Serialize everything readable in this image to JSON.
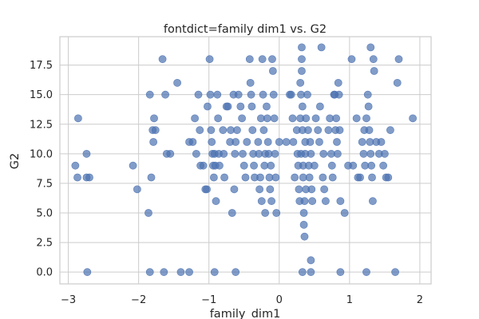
{
  "chart_data": {
    "type": "scatter",
    "title": "fontdict=family dim1 vs. G2",
    "xlabel": "family_dim1",
    "ylabel": "G2",
    "xlim": [
      -3.12,
      2.16
    ],
    "ylim": [
      -1.0,
      19.9
    ],
    "xticks": [
      -3,
      -2,
      -1,
      0,
      1,
      2
    ],
    "yticks": [
      0.0,
      2.5,
      5.0,
      7.5,
      10.0,
      12.5,
      15.0,
      17.5
    ],
    "xtick_labels": [
      "−3",
      "−2",
      "−1",
      "0",
      "1",
      "2"
    ],
    "ytick_labels": [
      "0.0",
      "2.5",
      "5.0",
      "7.5",
      "10.0",
      "12.5",
      "15.0",
      "17.5"
    ],
    "grid": true,
    "color": "#4c72b0",
    "points": [
      [
        -2.86,
        13
      ],
      [
        -2.9,
        9
      ],
      [
        -2.87,
        8
      ],
      [
        -2.74,
        10
      ],
      [
        -2.74,
        8
      ],
      [
        -2.7,
        8
      ],
      [
        -2.73,
        0
      ],
      [
        -2.08,
        9
      ],
      [
        -2.02,
        7
      ],
      [
        -1.86,
        5
      ],
      [
        -1.84,
        15
      ],
      [
        -1.82,
        8
      ],
      [
        -1.8,
        12
      ],
      [
        -1.79,
        11
      ],
      [
        -1.78,
        13
      ],
      [
        -1.76,
        12
      ],
      [
        -1.84,
        0
      ],
      [
        -1.66,
        18
      ],
      [
        -1.64,
        0
      ],
      [
        -1.62,
        15
      ],
      [
        -1.6,
        10
      ],
      [
        -1.55,
        10
      ],
      [
        -1.45,
        16
      ],
      [
        -1.4,
        0
      ],
      [
        -1.28,
        11
      ],
      [
        -1.23,
        11
      ],
      [
        -1.28,
        0
      ],
      [
        -1.2,
        13
      ],
      [
        -1.18,
        10
      ],
      [
        -1.15,
        15
      ],
      [
        -1.13,
        12
      ],
      [
        -1.12,
        9
      ],
      [
        -1.08,
        9
      ],
      [
        -1.05,
        7
      ],
      [
        -1.03,
        7
      ],
      [
        -1.02,
        14
      ],
      [
        -0.99,
        18
      ],
      [
        -0.98,
        15
      ],
      [
        -0.97,
        12
      ],
      [
        -0.96,
        11
      ],
      [
        -0.95,
        10
      ],
      [
        -0.94,
        9
      ],
      [
        -0.92,
        10
      ],
      [
        -0.91,
        9
      ],
      [
        -0.9,
        6
      ],
      [
        -0.93,
        8
      ],
      [
        -0.88,
        15
      ],
      [
        -0.87,
        13
      ],
      [
        -0.86,
        10
      ],
      [
        -0.85,
        9
      ],
      [
        -0.92,
        0
      ],
      [
        -0.8,
        12
      ],
      [
        -0.79,
        10
      ],
      [
        -0.78,
        8
      ],
      [
        -0.75,
        14
      ],
      [
        -0.73,
        14
      ],
      [
        -0.7,
        11
      ],
      [
        -0.69,
        12
      ],
      [
        -0.67,
        5
      ],
      [
        -0.65,
        15
      ],
      [
        -0.64,
        7
      ],
      [
        -0.63,
        10
      ],
      [
        -0.62,
        11
      ],
      [
        -0.6,
        12
      ],
      [
        -0.62,
        0
      ],
      [
        -0.58,
        15
      ],
      [
        -0.55,
        14
      ],
      [
        -0.53,
        13
      ],
      [
        -0.52,
        10
      ],
      [
        -0.5,
        9
      ],
      [
        -0.48,
        8
      ],
      [
        -0.46,
        11
      ],
      [
        -0.42,
        18
      ],
      [
        -0.41,
        16
      ],
      [
        -0.4,
        15
      ],
      [
        -0.39,
        14
      ],
      [
        -0.38,
        12
      ],
      [
        -0.37,
        10
      ],
      [
        -0.36,
        9
      ],
      [
        -0.35,
        8
      ],
      [
        -0.3,
        11
      ],
      [
        -0.29,
        10
      ],
      [
        -0.28,
        7
      ],
      [
        -0.27,
        8
      ],
      [
        -0.26,
        13
      ],
      [
        -0.25,
        6
      ],
      [
        -0.24,
        18
      ],
      [
        -0.23,
        15
      ],
      [
        -0.22,
        12
      ],
      [
        -0.21,
        9
      ],
      [
        -0.2,
        10
      ],
      [
        -0.2,
        5
      ],
      [
        -0.18,
        14
      ],
      [
        -0.17,
        13
      ],
      [
        -0.16,
        11
      ],
      [
        -0.15,
        10
      ],
      [
        -0.14,
        8
      ],
      [
        -0.13,
        7
      ],
      [
        -0.12,
        9
      ],
      [
        -0.11,
        6
      ],
      [
        -0.1,
        18
      ],
      [
        -0.09,
        17
      ],
      [
        -0.08,
        15
      ],
      [
        -0.07,
        13
      ],
      [
        -0.06,
        10
      ],
      [
        -0.05,
        8
      ],
      [
        -0.04,
        5
      ],
      [
        0.0,
        11
      ],
      [
        0.1,
        11
      ],
      [
        0.15,
        15
      ],
      [
        0.17,
        15
      ],
      [
        0.19,
        13
      ],
      [
        0.2,
        11
      ],
      [
        0.22,
        8
      ],
      [
        0.25,
        12
      ],
      [
        0.26,
        10
      ],
      [
        0.27,
        9
      ],
      [
        0.28,
        7
      ],
      [
        0.29,
        6
      ],
      [
        0.3,
        16
      ],
      [
        0.3,
        13
      ],
      [
        0.31,
        15
      ],
      [
        0.31,
        10
      ],
      [
        0.32,
        19
      ],
      [
        0.32,
        18
      ],
      [
        0.32,
        17
      ],
      [
        0.33,
        14
      ],
      [
        0.33,
        12
      ],
      [
        0.34,
        9
      ],
      [
        0.34,
        8
      ],
      [
        0.35,
        5
      ],
      [
        0.35,
        4
      ],
      [
        0.36,
        6
      ],
      [
        0.36,
        3
      ],
      [
        0.33,
        0
      ],
      [
        0.37,
        11
      ],
      [
        0.37,
        10
      ],
      [
        0.38,
        13
      ],
      [
        0.38,
        7
      ],
      [
        0.4,
        15
      ],
      [
        0.41,
        12
      ],
      [
        0.42,
        9
      ],
      [
        0.43,
        8
      ],
      [
        0.44,
        11
      ],
      [
        0.45,
        10
      ],
      [
        0.46,
        7
      ],
      [
        0.47,
        6
      ],
      [
        0.45,
        1
      ],
      [
        0.45,
        0
      ],
      [
        0.5,
        9
      ],
      [
        0.52,
        13
      ],
      [
        0.55,
        12
      ],
      [
        0.57,
        11
      ],
      [
        0.58,
        14
      ],
      [
        0.6,
        19
      ],
      [
        0.62,
        8
      ],
      [
        0.63,
        10
      ],
      [
        0.64,
        7
      ],
      [
        0.66,
        6
      ],
      [
        0.7,
        12
      ],
      [
        0.72,
        13
      ],
      [
        0.74,
        10
      ],
      [
        0.75,
        9
      ],
      [
        0.76,
        8
      ],
      [
        0.78,
        15
      ],
      [
        0.79,
        15
      ],
      [
        0.8,
        12
      ],
      [
        0.81,
        13
      ],
      [
        0.82,
        11
      ],
      [
        0.83,
        10
      ],
      [
        0.84,
        16
      ],
      [
        0.85,
        15
      ],
      [
        0.86,
        12
      ],
      [
        0.87,
        6
      ],
      [
        0.87,
        0
      ],
      [
        0.93,
        5
      ],
      [
        0.98,
        9
      ],
      [
        1.03,
        18
      ],
      [
        1.05,
        9
      ],
      [
        1.1,
        13
      ],
      [
        1.12,
        8
      ],
      [
        1.15,
        8
      ],
      [
        1.18,
        11
      ],
      [
        1.2,
        10
      ],
      [
        1.21,
        12
      ],
      [
        1.22,
        9
      ],
      [
        1.24,
        13
      ],
      [
        1.24,
        0
      ],
      [
        1.26,
        15
      ],
      [
        1.27,
        14
      ],
      [
        1.28,
        12
      ],
      [
        1.29,
        11
      ],
      [
        1.3,
        19
      ],
      [
        1.3,
        10
      ],
      [
        1.31,
        9
      ],
      [
        1.32,
        8
      ],
      [
        1.33,
        6
      ],
      [
        1.34,
        18
      ],
      [
        1.35,
        17
      ],
      [
        1.38,
        11
      ],
      [
        1.42,
        10
      ],
      [
        1.45,
        11
      ],
      [
        1.48,
        9
      ],
      [
        1.5,
        10
      ],
      [
        1.52,
        8
      ],
      [
        1.55,
        8
      ],
      [
        1.58,
        12
      ],
      [
        1.65,
        0
      ],
      [
        1.68,
        16
      ],
      [
        1.7,
        18
      ],
      [
        1.9,
        13
      ]
    ]
  }
}
